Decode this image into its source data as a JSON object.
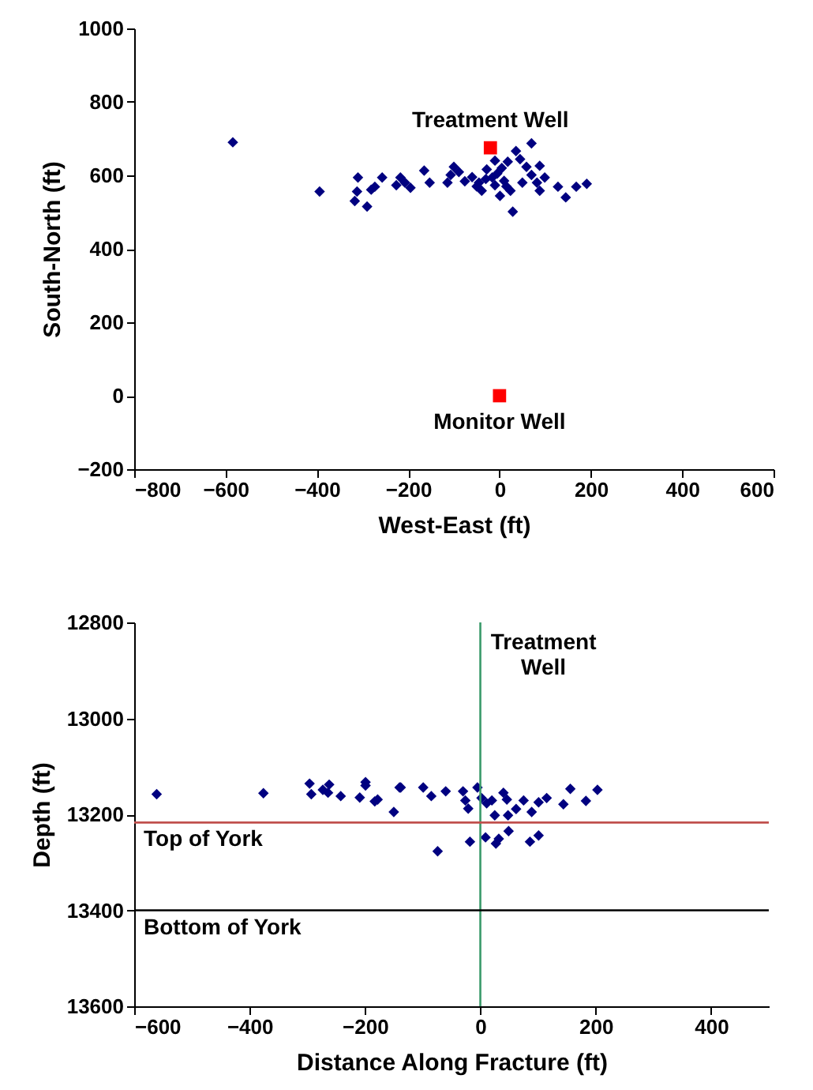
{
  "chart_data": [
    {
      "type": "scatter",
      "xlabel": "West-East (ft)",
      "ylabel": "South-North (ft)",
      "xlim": [
        -800,
        600
      ],
      "xticks": [
        -800,
        -600,
        -400,
        -200,
        0,
        200,
        400,
        600
      ],
      "ylim": [
        -200,
        1000
      ],
      "yticks": [
        -200,
        0,
        200,
        400,
        600,
        800,
        1000
      ],
      "grid": false,
      "marker": "diamond",
      "series": [
        {
          "color": "#000080",
          "x": [
            -584,
            -394,
            -310,
            -312,
            -317,
            -290,
            -281,
            -273,
            -257,
            -226,
            -217,
            -207,
            -195,
            -165,
            -153,
            -114,
            -100,
            -89,
            -76,
            -107,
            -45,
            -39,
            -28,
            -16,
            -10,
            1,
            29,
            18,
            36,
            70,
            45,
            59,
            88,
            70,
            99,
            82,
            88,
            128,
            145,
            168,
            191,
            24,
            50,
            -30,
            -5,
            10,
            15,
            -50,
            -60,
            5,
            -10
          ],
          "values": [
            690,
            556,
            594,
            556,
            530,
            515,
            561,
            569,
            594,
            573,
            594,
            580,
            566,
            613,
            580,
            580,
            623,
            609,
            584,
            601,
            580,
            558,
            616,
            594,
            573,
            544,
            501,
            637,
            666,
            687,
            644,
            623,
            626,
            601,
            594,
            580,
            558,
            569,
            540,
            569,
            577,
            558,
            580,
            590,
            605,
            585,
            570,
            570,
            595,
            620,
            640
          ]
        },
        {
          "color": "#ff0000",
          "marker": "square",
          "x": [
            -20,
            0
          ],
          "values": [
            675,
            0
          ]
        }
      ],
      "annotations": [
        {
          "text": "Treatment Well",
          "x": -20,
          "y": 675
        },
        {
          "text": "Monitor Well",
          "x": 0,
          "y": 0
        }
      ]
    },
    {
      "type": "scatter",
      "xlabel": "Distance Along Fracture (ft)",
      "ylabel": "Depth (ft)",
      "xlim": [
        -600,
        500
      ],
      "xticks": [
        -600,
        -400,
        -200,
        0,
        200,
        400
      ],
      "ylim": [
        13600,
        12800
      ],
      "yticks": [
        12800,
        13000,
        13200,
        13400,
        13600
      ],
      "grid": false,
      "marker": "diamond",
      "series": [
        {
          "color": "#000080",
          "x": [
            -561,
            -376,
            -296,
            -293,
            -273,
            -262,
            -264,
            -242,
            -209,
            -199,
            -199,
            -183,
            -178,
            -150,
            -140,
            -138,
            -99,
            -85,
            -60,
            -30,
            -26,
            -21,
            -5,
            2,
            11,
            20,
            25,
            40,
            46,
            48,
            62,
            75,
            89,
            101,
            115,
            144,
            156,
            183,
            203,
            -74,
            -18,
            9,
            27,
            32,
            49,
            86,
            101
          ],
          "values": [
            13158,
            13156,
            13136,
            13158,
            13149,
            13138,
            13155,
            13162,
            13165,
            13133,
            13140,
            13173,
            13169,
            13195,
            13144,
            13144,
            13144,
            13162,
            13152,
            13152,
            13171,
            13188,
            13144,
            13166,
            13177,
            13171,
            13202,
            13155,
            13169,
            13202,
            13189,
            13171,
            13195,
            13175,
            13166,
            13179,
            13147,
            13172,
            13149,
            13277,
            13257,
            13248,
            13261,
            13251,
            13235,
            13257,
            13244
          ]
        }
      ],
      "ref_lines": [
        {
          "axis": "x",
          "value": 0,
          "label": "Treatment Well",
          "color": "#3a9a6a"
        },
        {
          "axis": "y",
          "value": 13217,
          "label": "Top of York",
          "color": "#c0504d"
        },
        {
          "axis": "y",
          "value": 13400,
          "label": "Bottom of York",
          "color": "#000000"
        }
      ]
    }
  ]
}
